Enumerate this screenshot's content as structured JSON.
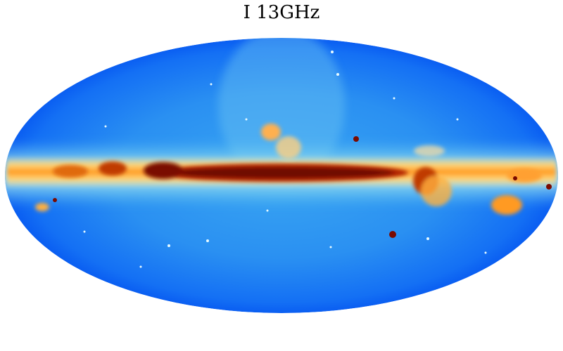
{
  "title": "I 13GHz"
}
